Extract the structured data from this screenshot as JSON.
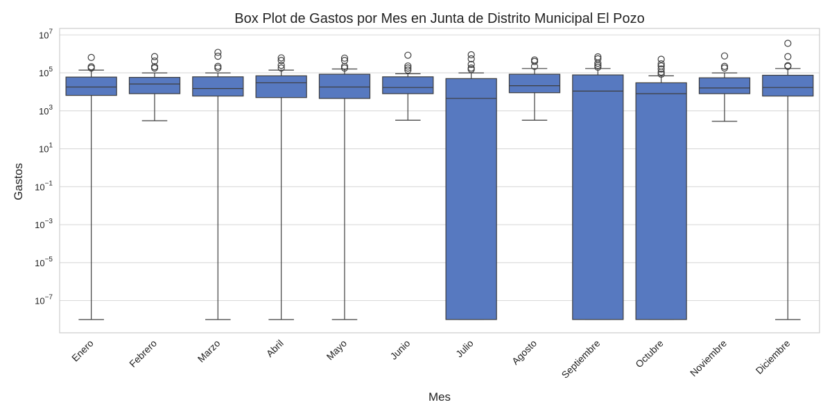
{
  "chart_data": {
    "type": "box",
    "title": "Box Plot de Gastos por Mes en Junta de Distrito Municipal El Pozo",
    "xlabel": "Mes",
    "ylabel": "Gastos",
    "y_scale": "log",
    "ylim": [
      2e-09,
      22000000.0
    ],
    "y_ticks": [
      {
        "value": 10000000.0,
        "base": "10",
        "exp": "7"
      },
      {
        "value": 100000.0,
        "base": "10",
        "exp": "5"
      },
      {
        "value": 1000.0,
        "base": "10",
        "exp": "3"
      },
      {
        "value": 10.0,
        "base": "10",
        "exp": "1"
      },
      {
        "value": 0.1,
        "base": "10",
        "exp": "−1"
      },
      {
        "value": 0.001,
        "base": "10",
        "exp": "−3"
      },
      {
        "value": 1e-05,
        "base": "10",
        "exp": "−5"
      },
      {
        "value": 1e-07,
        "base": "10",
        "exp": "−7"
      }
    ],
    "grid": true,
    "box_color": "#5779c0",
    "line_color": "#3d3d3d",
    "categories": [
      "Enero",
      "Febrero",
      "Marzo",
      "Abril",
      "Mayo",
      "Junio",
      "Julio",
      "Agosto",
      "Septiembre",
      "Octubre",
      "Noviembre",
      "Diciembre"
    ],
    "boxes": [
      {
        "whislo": 1e-08,
        "q1": 6500,
        "med": 18000,
        "q3": 60000,
        "whishi": 140000,
        "fliers": [
          210000,
          180000,
          650000
        ]
      },
      {
        "whislo": 300,
        "q1": 8000,
        "med": 26000,
        "q3": 58000,
        "whishi": 100000,
        "fliers": [
          180000,
          210000,
          420000,
          720000
        ]
      },
      {
        "whislo": 1e-08,
        "q1": 6000,
        "med": 15000,
        "q3": 62000,
        "whishi": 100000,
        "fliers": [
          180000,
          220000,
          750000,
          1200000
        ]
      },
      {
        "whislo": 1e-08,
        "q1": 5000,
        "med": 30000,
        "q3": 70000,
        "whishi": 140000,
        "fliers": [
          180000,
          250000,
          450000,
          620000
        ]
      },
      {
        "whislo": 1e-08,
        "q1": 4500,
        "med": 18000,
        "q3": 85000,
        "whishi": 160000,
        "fliers": [
          180000,
          220000,
          450000,
          600000
        ]
      },
      {
        "whislo": 320,
        "q1": 8000,
        "med": 17000,
        "q3": 62000,
        "whishi": 90000,
        "fliers": [
          140000,
          180000,
          230000,
          850000
        ]
      },
      {
        "whislo": 1e-08,
        "q1": 1e-08,
        "med": 4500,
        "q3": 50000,
        "whishi": 100000,
        "fliers": [
          150000,
          180000,
          280000,
          550000,
          900000
        ]
      },
      {
        "whislo": 320,
        "q1": 9000,
        "med": 21000,
        "q3": 85000,
        "whishi": 170000,
        "fliers": [
          220000,
          400000,
          480000
        ]
      },
      {
        "whislo": 1e-08,
        "q1": 1e-08,
        "med": 11000,
        "q3": 78000,
        "whishi": 170000,
        "fliers": [
          200000,
          250000,
          320000,
          550000,
          700000
        ]
      },
      {
        "whislo": 1e-08,
        "q1": 1e-08,
        "med": 8000,
        "q3": 30000,
        "whishi": 70000,
        "fliers": [
          85000,
          110000,
          160000,
          230000,
          300000,
          520000
        ]
      },
      {
        "whislo": 280,
        "q1": 8000,
        "med": 16000,
        "q3": 55000,
        "whishi": 100000,
        "fliers": [
          180000,
          220000,
          780000
        ]
      },
      {
        "whislo": 1e-08,
        "q1": 6000,
        "med": 17000,
        "q3": 75000,
        "whishi": 170000,
        "fliers": [
          220000,
          240000,
          720000,
          3600000
        ]
      }
    ]
  }
}
